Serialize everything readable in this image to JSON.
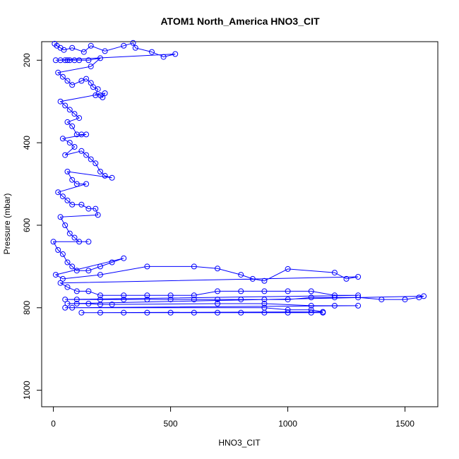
{
  "chart_data": {
    "type": "scatter",
    "title": "ATOM1 North_America HNO3_CIT",
    "xlabel": "HNO3_CIT",
    "ylabel": "Pressure (mbar)",
    "xlim": [
      -50,
      1640
    ],
    "ylim": [
      1040,
      155
    ],
    "y_reversed": true,
    "xticks": [
      0,
      500,
      1000,
      1500
    ],
    "yticks": [
      200,
      400,
      600,
      800,
      1000
    ],
    "color": "#0000ff",
    "marker": "open-circle",
    "connected_lines": true,
    "series": [
      {
        "points": [
          [
            5,
            160
          ],
          [
            15,
            165
          ],
          [
            30,
            170
          ],
          [
            45,
            175
          ],
          [
            80,
            170
          ],
          [
            130,
            180
          ],
          [
            160,
            165
          ],
          [
            220,
            178
          ],
          [
            300,
            165
          ],
          [
            340,
            158
          ],
          [
            350,
            170
          ],
          [
            420,
            180
          ],
          [
            470,
            192
          ],
          [
            520,
            185
          ],
          [
            10,
            200
          ],
          [
            30,
            200
          ],
          [
            50,
            200
          ],
          [
            60,
            200
          ],
          [
            70,
            200
          ],
          [
            90,
            200
          ],
          [
            110,
            200
          ],
          [
            150,
            200
          ],
          [
            200,
            195
          ],
          [
            160,
            215
          ],
          [
            20,
            230
          ],
          [
            40,
            240
          ],
          [
            60,
            250
          ],
          [
            80,
            260
          ],
          [
            120,
            250
          ],
          [
            140,
            245
          ],
          [
            160,
            255
          ],
          [
            170,
            265
          ],
          [
            190,
            270
          ],
          [
            180,
            285
          ],
          [
            200,
            285
          ],
          [
            210,
            290
          ],
          [
            220,
            280
          ],
          [
            30,
            300
          ],
          [
            50,
            310
          ],
          [
            70,
            320
          ],
          [
            90,
            330
          ],
          [
            110,
            340
          ],
          [
            60,
            350
          ],
          [
            80,
            360
          ],
          [
            100,
            380
          ],
          [
            120,
            380
          ],
          [
            140,
            380
          ],
          [
            40,
            390
          ],
          [
            70,
            400
          ],
          [
            90,
            410
          ],
          [
            50,
            430
          ],
          [
            120,
            420
          ],
          [
            140,
            430
          ],
          [
            160,
            440
          ],
          [
            180,
            450
          ],
          [
            200,
            470
          ],
          [
            220,
            480
          ],
          [
            250,
            485
          ],
          [
            60,
            470
          ],
          [
            80,
            490
          ],
          [
            100,
            500
          ],
          [
            140,
            500
          ],
          [
            20,
            520
          ],
          [
            40,
            530
          ],
          [
            60,
            540
          ],
          [
            80,
            550
          ],
          [
            120,
            550
          ],
          [
            150,
            560
          ],
          [
            180,
            560
          ],
          [
            190,
            575
          ],
          [
            30,
            580
          ],
          [
            50,
            600
          ],
          [
            70,
            620
          ],
          [
            90,
            630
          ],
          [
            110,
            640
          ],
          [
            150,
            640
          ],
          [
            0,
            640
          ],
          [
            20,
            660
          ],
          [
            40,
            670
          ],
          [
            60,
            690
          ],
          [
            80,
            700
          ],
          [
            100,
            710
          ],
          [
            150,
            710
          ],
          [
            200,
            700
          ],
          [
            250,
            690
          ],
          [
            300,
            680
          ],
          [
            10,
            720
          ],
          [
            40,
            730
          ],
          [
            200,
            720
          ],
          [
            400,
            700
          ],
          [
            600,
            700
          ],
          [
            700,
            705
          ],
          [
            800,
            720
          ],
          [
            850,
            730
          ],
          [
            900,
            735
          ],
          [
            1000,
            706
          ],
          [
            1200,
            715
          ],
          [
            1250,
            730
          ],
          [
            1300,
            725
          ],
          [
            30,
            740
          ],
          [
            60,
            750
          ],
          [
            100,
            760
          ],
          [
            150,
            760
          ],
          [
            200,
            770
          ],
          [
            300,
            770
          ],
          [
            400,
            770
          ],
          [
            500,
            770
          ],
          [
            600,
            770
          ],
          [
            700,
            760
          ],
          [
            800,
            760
          ],
          [
            900,
            760
          ],
          [
            1000,
            760
          ],
          [
            1100,
            760
          ],
          [
            1200,
            770
          ],
          [
            1300,
            770
          ],
          [
            50,
            780
          ],
          [
            100,
            780
          ],
          [
            200,
            780
          ],
          [
            300,
            780
          ],
          [
            400,
            780
          ],
          [
            500,
            780
          ],
          [
            600,
            780
          ],
          [
            700,
            780
          ],
          [
            800,
            780
          ],
          [
            900,
            780
          ],
          [
            1000,
            780
          ],
          [
            1100,
            775
          ],
          [
            1200,
            775
          ],
          [
            1300,
            775
          ],
          [
            1400,
            780
          ],
          [
            1500,
            780
          ],
          [
            1560,
            775
          ],
          [
            1580,
            772
          ],
          [
            60,
            790
          ],
          [
            100,
            790
          ],
          [
            150,
            790
          ],
          [
            200,
            792
          ],
          [
            250,
            792
          ],
          [
            700,
            790
          ],
          [
            900,
            790
          ],
          [
            1100,
            795
          ],
          [
            1200,
            795
          ],
          [
            1300,
            795
          ],
          [
            50,
            800
          ],
          [
            80,
            800
          ],
          [
            900,
            800
          ],
          [
            1000,
            805
          ],
          [
            1100,
            805
          ],
          [
            1150,
            810
          ],
          [
            120,
            812
          ],
          [
            200,
            812
          ],
          [
            300,
            812
          ],
          [
            400,
            812
          ],
          [
            500,
            812
          ],
          [
            600,
            812
          ],
          [
            700,
            812
          ],
          [
            800,
            812
          ],
          [
            900,
            812
          ],
          [
            1000,
            812
          ],
          [
            1100,
            812
          ],
          [
            1150,
            812
          ]
        ]
      }
    ]
  }
}
